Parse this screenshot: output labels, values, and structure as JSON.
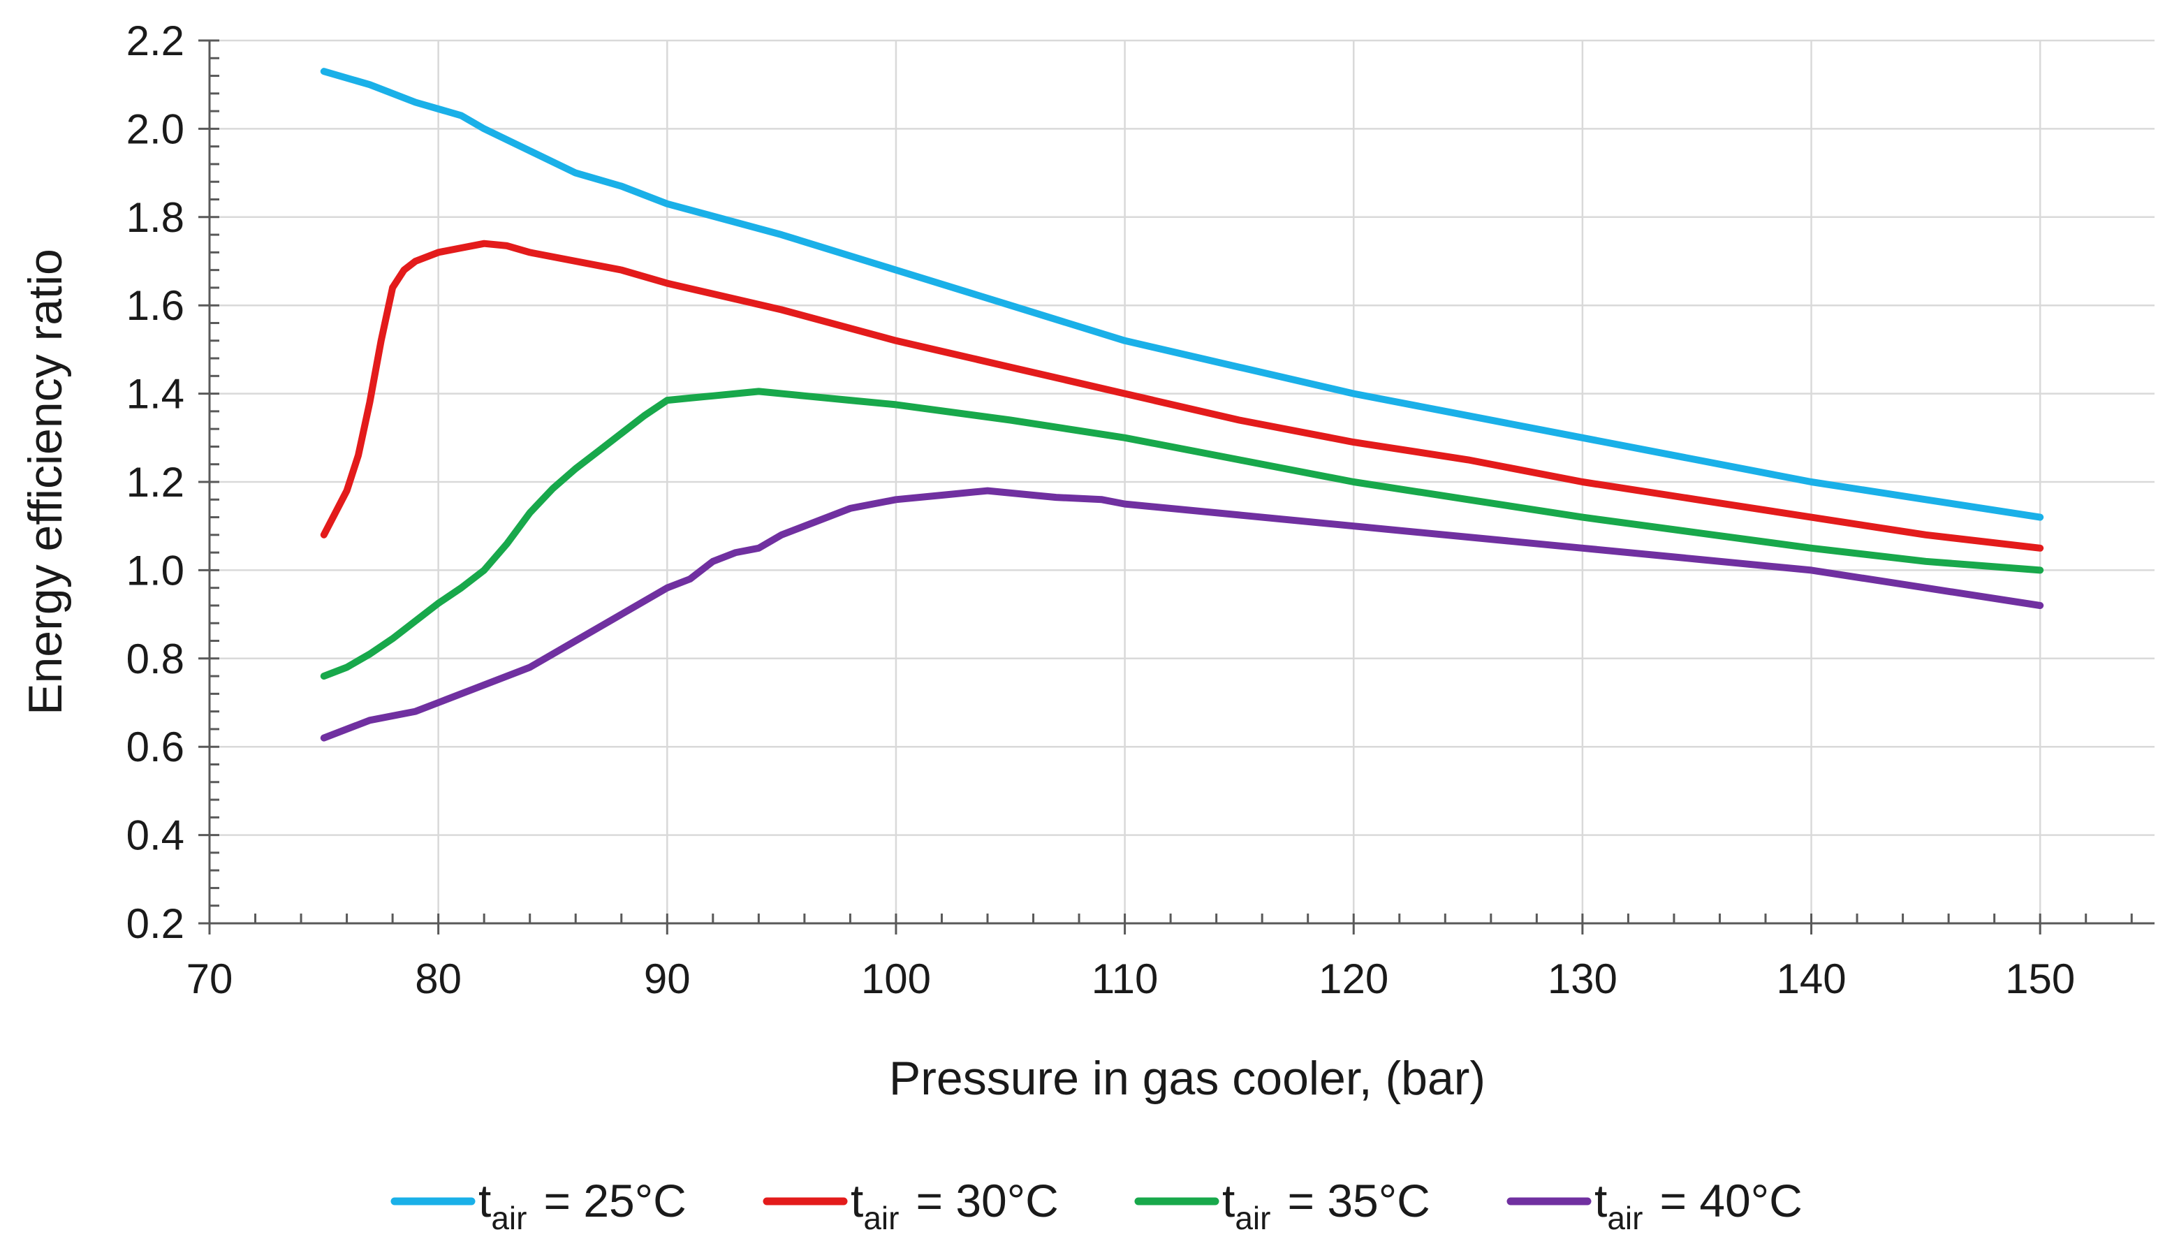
{
  "chart_data": {
    "type": "line",
    "title": "",
    "xlabel": "Pressure in gas cooler, (bar)",
    "ylabel": "Energy efficiency ratio",
    "xlim": [
      70,
      155
    ],
    "ylim": [
      0.2,
      2.2
    ],
    "xticks": [
      70,
      80,
      90,
      100,
      110,
      120,
      130,
      140,
      150
    ],
    "xtick_labels": [
      "70",
      "80",
      "90",
      "100",
      "110",
      "120",
      "130",
      "140",
      "150"
    ],
    "yticks": [
      0.2,
      0.4,
      0.6,
      0.8,
      1.0,
      1.2,
      1.4,
      1.6,
      1.8,
      2.0,
      2.2
    ],
    "ytick_labels": [
      "0.2",
      "0.4",
      "0.6",
      "0.8",
      "1.0",
      "1.2",
      "1.4",
      "1.6",
      "1.8",
      "2.0",
      "2.2"
    ],
    "grid": true,
    "legend_position": "bottom",
    "series": [
      {
        "name": "t_air = 25°C",
        "legend_base": "t",
        "legend_sub": "air",
        "legend_rest": "= 25°C",
        "color": "#1ab0e8",
        "x": [
          75,
          77,
          79,
          81,
          82,
          84,
          86,
          88,
          90,
          95,
          100,
          105,
          110,
          115,
          120,
          125,
          130,
          135,
          140,
          145,
          150
        ],
        "y": [
          2.13,
          2.1,
          2.06,
          2.03,
          2.0,
          1.95,
          1.9,
          1.87,
          1.83,
          1.76,
          1.68,
          1.6,
          1.52,
          1.46,
          1.4,
          1.35,
          1.3,
          1.25,
          1.2,
          1.16,
          1.12
        ]
      },
      {
        "name": "t_air = 30°C",
        "legend_base": "t",
        "legend_sub": "air",
        "legend_rest": "= 30°C",
        "color": "#e31b1b",
        "x": [
          75,
          75.5,
          76,
          76.5,
          77,
          77.5,
          78,
          78.5,
          79,
          80,
          81,
          82,
          83,
          84,
          86,
          88,
          90,
          95,
          100,
          105,
          110,
          115,
          120,
          125,
          130,
          135,
          140,
          145,
          150
        ],
        "y": [
          1.08,
          1.13,
          1.18,
          1.26,
          1.38,
          1.52,
          1.64,
          1.68,
          1.7,
          1.72,
          1.73,
          1.74,
          1.735,
          1.72,
          1.7,
          1.68,
          1.65,
          1.59,
          1.52,
          1.46,
          1.4,
          1.34,
          1.29,
          1.25,
          1.2,
          1.16,
          1.12,
          1.08,
          1.05
        ]
      },
      {
        "name": "t_air = 35°C",
        "legend_base": "t",
        "legend_sub": "air",
        "legend_rest": "= 35°C",
        "color": "#18a84b",
        "x": [
          75,
          76,
          77,
          78,
          79,
          80,
          81,
          82,
          83,
          84,
          85,
          86,
          87,
          88,
          89,
          90,
          91,
          92,
          94,
          96,
          98,
          100,
          105,
          110,
          115,
          120,
          125,
          130,
          135,
          140,
          145,
          150
        ],
        "y": [
          0.76,
          0.78,
          0.81,
          0.845,
          0.885,
          0.925,
          0.96,
          1.0,
          1.06,
          1.13,
          1.185,
          1.23,
          1.27,
          1.31,
          1.35,
          1.385,
          1.39,
          1.395,
          1.405,
          1.395,
          1.385,
          1.375,
          1.34,
          1.3,
          1.25,
          1.2,
          1.16,
          1.12,
          1.085,
          1.05,
          1.02,
          1.0
        ]
      },
      {
        "name": "t_air = 40°C",
        "legend_base": "t",
        "legend_sub": "air",
        "legend_rest": "= 40°C",
        "color": "#7030a0",
        "x": [
          75,
          77,
          79,
          80,
          82,
          84,
          86,
          88,
          90,
          91,
          92,
          93,
          94,
          95,
          96,
          98,
          100,
          102,
          104,
          106,
          107,
          109,
          110,
          115,
          120,
          125,
          130,
          135,
          140,
          145,
          150
        ],
        "y": [
          0.62,
          0.66,
          0.68,
          0.7,
          0.74,
          0.78,
          0.84,
          0.9,
          0.96,
          0.98,
          1.02,
          1.04,
          1.05,
          1.08,
          1.1,
          1.14,
          1.16,
          1.17,
          1.18,
          1.17,
          1.165,
          1.16,
          1.15,
          1.125,
          1.1,
          1.075,
          1.05,
          1.025,
          1.0,
          0.96,
          0.92
        ]
      }
    ]
  }
}
